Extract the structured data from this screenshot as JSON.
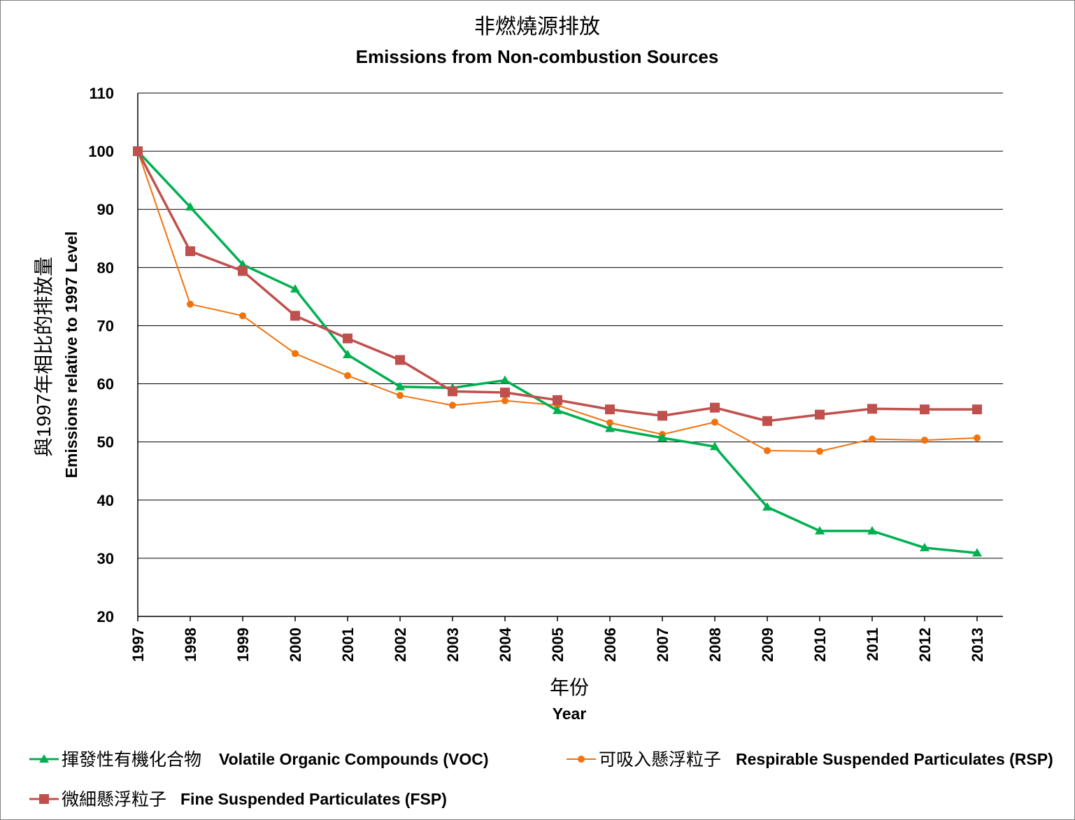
{
  "chart_data": {
    "type": "line",
    "title_zh": "非燃燒源排放",
    "title": "Emissions from Non-combustion Sources",
    "ylabel_zh": "與1997年相比的排放量",
    "ylabel": "Emissions relative to 1997 Level",
    "xlabel_zh": "年份",
    "xlabel": "Year",
    "ylim": [
      20,
      110
    ],
    "yticks": [
      "20",
      "30",
      "40",
      "50",
      "60",
      "70",
      "80",
      "90",
      "100",
      "110"
    ],
    "categories": [
      "1997",
      "1998",
      "1999",
      "2000",
      "2001",
      "2002",
      "2003",
      "2004",
      "2005",
      "2006",
      "2007",
      "2008",
      "2009",
      "2010",
      "2011",
      "2012",
      "2013"
    ],
    "grid": true,
    "legend_position": "bottom",
    "series": [
      {
        "name_zh": "揮發性有機化合物",
        "name": "Volatile Organic Compounds (VOC)",
        "color": "#00b050",
        "marker": "triangle",
        "values": [
          100,
          90.4,
          80.5,
          76.3,
          65.0,
          59.5,
          59.3,
          60.6,
          55.4,
          52.3,
          50.7,
          49.2,
          38.8,
          34.7,
          34.7,
          31.8,
          30.9
        ]
      },
      {
        "name_zh": "可吸入懸浮粒子",
        "name": "Respirable Suspended Particulates (RSP)",
        "color": "#f07310",
        "marker": "circle",
        "values": [
          100,
          73.7,
          71.7,
          65.2,
          61.4,
          58.0,
          56.3,
          57.1,
          56.3,
          53.3,
          51.3,
          53.4,
          48.5,
          48.4,
          50.5,
          50.3,
          50.7
        ]
      },
      {
        "name_zh": "微細懸浮粒子",
        "name": "Fine Suspended Particulates (FSP)",
        "color": "#c0504d",
        "marker": "square",
        "values": [
          100,
          82.8,
          79.4,
          71.7,
          67.8,
          64.1,
          58.7,
          58.5,
          57.2,
          55.6,
          54.5,
          55.9,
          53.6,
          54.7,
          55.7,
          55.6,
          55.6
        ]
      }
    ]
  }
}
